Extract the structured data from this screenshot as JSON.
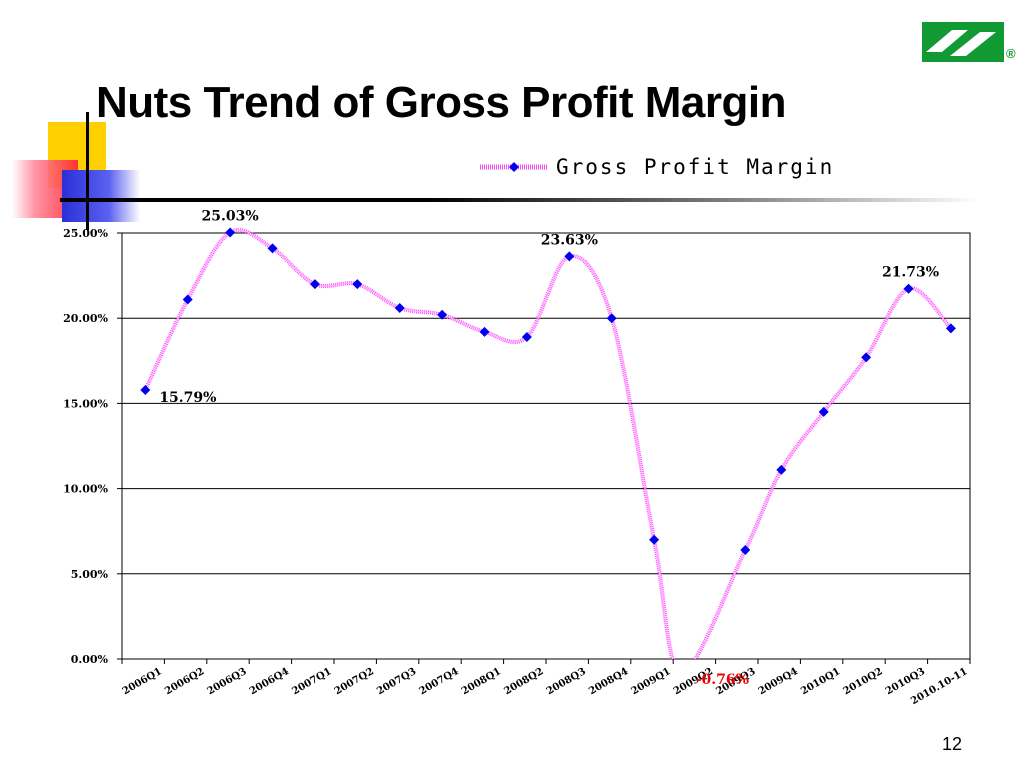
{
  "slide": {
    "title": "Nuts Trend of Gross Profit Margin",
    "page_number": "12",
    "logo_mark": "®"
  },
  "colors": {
    "series_line": "#ff44ff",
    "marker": "#0000ee",
    "negative_label": "#ee0000",
    "logo_green": "#119a33",
    "deco_yellow": "#ffd000",
    "deco_red": "#ff3344",
    "deco_blue": "#2a30d8"
  },
  "chart_data": {
    "type": "line",
    "legend": {
      "label": "Gross Profit Margin",
      "position": "top-right"
    },
    "categories": [
      "2006Q1",
      "2006Q2",
      "2006Q3",
      "2006Q4",
      "2007Q1",
      "2007Q2",
      "2007Q3",
      "2007Q4",
      "2008Q1",
      "2008Q2",
      "2008Q3",
      "2008Q4",
      "2009Q1",
      "2009Q2",
      "2009Q3",
      "2009Q4",
      "2010Q1",
      "2010Q2",
      "2010Q3",
      "2010.10-11"
    ],
    "series": [
      {
        "name": "Gross Profit Margin",
        "values": [
          15.79,
          21.1,
          25.03,
          24.1,
          22.0,
          22.0,
          20.6,
          20.2,
          19.2,
          18.9,
          23.63,
          20.0,
          7.0,
          -0.76,
          6.4,
          11.1,
          14.5,
          17.7,
          21.73,
          19.4
        ]
      }
    ],
    "point_offsets": [
      0.55,
      0.55,
      0.55,
      0.55,
      0.55,
      0.55,
      0.55,
      0.55,
      0.55,
      0.55,
      0.55,
      0.55,
      0.55,
      0.2,
      0.7,
      0.55,
      0.55,
      0.55,
      0.55,
      0.55
    ],
    "ylim": [
      0,
      25
    ],
    "yticks": [
      "0.00%",
      "5.00%",
      "10.00%",
      "15.00%",
      "20.00%",
      "25.00%"
    ],
    "ytick_values": [
      0,
      5,
      10,
      15,
      20,
      25
    ],
    "grid": true,
    "annotations": [
      {
        "index": 0,
        "text": "15.79%",
        "position": "below-right",
        "color": "#000000"
      },
      {
        "index": 2,
        "text": "25.03%",
        "position": "above",
        "color": "#000000"
      },
      {
        "index": 10,
        "text": "23.63%",
        "position": "above",
        "color": "#000000"
      },
      {
        "index": 13,
        "text": "-0.76%",
        "position": "below-right",
        "color": "#ee0000"
      },
      {
        "index": 18,
        "text": "21.73%",
        "position": "above-left",
        "color": "#000000"
      }
    ]
  }
}
